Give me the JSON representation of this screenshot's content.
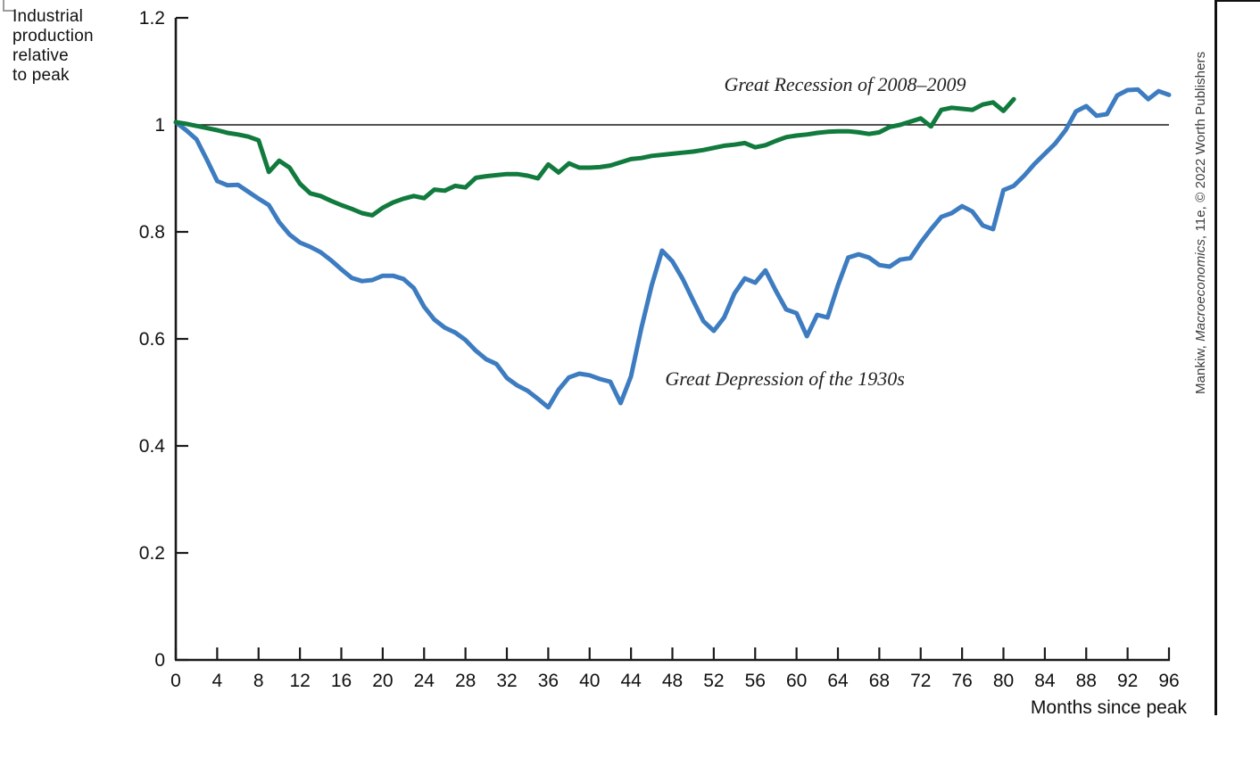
{
  "page": {
    "background": "#ffffff",
    "frame_color": "#111111"
  },
  "y_axis_title_lines": [
    "Industrial",
    "production",
    "relative",
    "to peak"
  ],
  "credit": {
    "prefix": "Mankiw, ",
    "italic": "Macroeconomics",
    "suffix": ", 11e, © 2022 Worth Publishers"
  },
  "chart_data": {
    "type": "line",
    "title": "",
    "xlabel": "Months since peak",
    "ylabel": "Industrial production relative to peak",
    "xlim": [
      0,
      96
    ],
    "ylim": [
      0,
      1.2
    ],
    "grid": false,
    "reference_line_y": 1.0,
    "axis_color": "#1a1a1a",
    "x_ticks": [
      0,
      4,
      8,
      12,
      16,
      20,
      24,
      28,
      32,
      36,
      40,
      44,
      48,
      52,
      56,
      60,
      64,
      68,
      72,
      76,
      80,
      84,
      88,
      92,
      96
    ],
    "y_ticks": [
      {
        "value": 1.2,
        "label": "1.2"
      },
      {
        "value": 1.0,
        "label": "1"
      },
      {
        "value": 0.8,
        "label": "0.8"
      },
      {
        "value": 0.6,
        "label": "0.6"
      },
      {
        "value": 0.4,
        "label": "0.4"
      },
      {
        "value": 0.2,
        "label": "0.2"
      },
      {
        "value": 0.0,
        "label": "0"
      }
    ],
    "series": [
      {
        "name": "Great Depression of the 1930s",
        "color": "#3d7cc0",
        "x_start": 0,
        "x_step": 1,
        "values": [
          1.005,
          0.99,
          0.973,
          0.935,
          0.895,
          0.887,
          0.888,
          0.875,
          0.862,
          0.85,
          0.818,
          0.795,
          0.78,
          0.772,
          0.762,
          0.747,
          0.73,
          0.714,
          0.708,
          0.71,
          0.718,
          0.718,
          0.712,
          0.695,
          0.66,
          0.636,
          0.621,
          0.612,
          0.598,
          0.578,
          0.562,
          0.553,
          0.527,
          0.513,
          0.503,
          0.488,
          0.472,
          0.505,
          0.528,
          0.535,
          0.532,
          0.525,
          0.52,
          0.48,
          0.53,
          0.62,
          0.7,
          0.765,
          0.745,
          0.712,
          0.672,
          0.633,
          0.615,
          0.64,
          0.685,
          0.713,
          0.705,
          0.728,
          0.69,
          0.655,
          0.648,
          0.605,
          0.645,
          0.64,
          0.7,
          0.752,
          0.758,
          0.752,
          0.738,
          0.735,
          0.748,
          0.751,
          0.78,
          0.805,
          0.828,
          0.835,
          0.848,
          0.838,
          0.812,
          0.805,
          0.878,
          0.886,
          0.905,
          0.927,
          0.946,
          0.965,
          0.99,
          1.025,
          1.035,
          1.017,
          1.02,
          1.055,
          1.065,
          1.066,
          1.048,
          1.063,
          1.056
        ]
      },
      {
        "name": "Great Recession of 2008–2009",
        "color": "#117a3d",
        "x_start": 0,
        "x_step": 1,
        "values": [
          1.005,
          1.002,
          0.998,
          0.994,
          0.99,
          0.985,
          0.982,
          0.978,
          0.971,
          0.912,
          0.933,
          0.92,
          0.89,
          0.872,
          0.867,
          0.858,
          0.85,
          0.843,
          0.835,
          0.831,
          0.845,
          0.855,
          0.862,
          0.867,
          0.863,
          0.879,
          0.877,
          0.886,
          0.883,
          0.901,
          0.904,
          0.906,
          0.908,
          0.908,
          0.905,
          0.9,
          0.926,
          0.911,
          0.928,
          0.92,
          0.92,
          0.921,
          0.924,
          0.93,
          0.936,
          0.938,
          0.942,
          0.944,
          0.946,
          0.948,
          0.95,
          0.953,
          0.957,
          0.961,
          0.963,
          0.966,
          0.958,
          0.962,
          0.97,
          0.977,
          0.98,
          0.982,
          0.985,
          0.987,
          0.988,
          0.988,
          0.986,
          0.983,
          0.986,
          0.996,
          1.0,
          1.006,
          1.012,
          0.997,
          1.028,
          1.032,
          1.03,
          1.028,
          1.038,
          1.042,
          1.026,
          1.048
        ]
      }
    ],
    "annotations": [
      {
        "text": "Great Recession of 2008–2009",
        "x_month": 53.0,
        "y_value": 1.075
      },
      {
        "text": "Great Depression of the 1930s",
        "x_month": 47.3,
        "y_value": 0.525
      }
    ],
    "legend": "none (curves labeled with inline annotations)"
  },
  "geometry_note": "y=1.0 horizontal reference line spans full plot width"
}
